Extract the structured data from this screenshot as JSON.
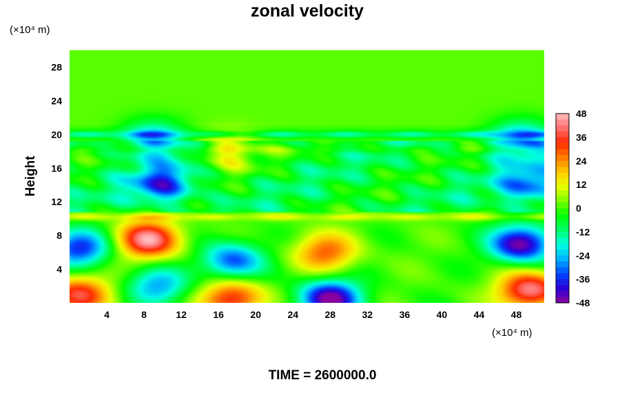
{
  "chart_data": {
    "type": "heatmap",
    "title": "zonal velocity",
    "xlabel": "",
    "ylabel": "Height",
    "x_unit": "(×10⁴ m)",
    "y_unit": "(×10⁴ m)",
    "x_ticks": [
      "4",
      "8",
      "12",
      "16",
      "20",
      "24",
      "28",
      "32",
      "36",
      "40",
      "44",
      "48"
    ],
    "y_ticks": [
      "4",
      "8",
      "12",
      "16",
      "20",
      "24",
      "28"
    ],
    "xlim": [
      0,
      51
    ],
    "ylim": [
      0,
      30
    ],
    "colorbar": {
      "range": [
        -48,
        48
      ],
      "ticks": [
        "48",
        "36",
        "24",
        "12",
        "0",
        "-12",
        "-24",
        "-36",
        "-48"
      ],
      "colors": [
        "#8a009c",
        "#2b00d8",
        "#0045ff",
        "#00b3ff",
        "#00ffe0",
        "#00ff6a",
        "#00ff00",
        "#7dff00",
        "#eaff00",
        "#ffc800",
        "#ff7a00",
        "#ff2a00",
        "#ff6e6e",
        "#ffbcbc"
      ]
    },
    "features": [
      {
        "x": 8.5,
        "y": 7.5,
        "value": 45
      },
      {
        "x": 17.5,
        "y": 5.0,
        "value": -33
      },
      {
        "x": 27.5,
        "y": 6.0,
        "value": 28
      },
      {
        "x": 28.0,
        "y": 0.5,
        "value": -48
      },
      {
        "x": 48.5,
        "y": 7.0,
        "value": -48
      },
      {
        "x": 49.5,
        "y": 1.5,
        "value": 44
      },
      {
        "x": 1.0,
        "y": 1.0,
        "value": 36
      },
      {
        "x": 17.5,
        "y": 0.5,
        "value": 36
      },
      {
        "x": 1.0,
        "y": 6.5,
        "value": -36
      },
      {
        "x": 9.5,
        "y": 2.0,
        "value": -26
      },
      {
        "x": 17.0,
        "y": 18.0,
        "value": 20
      },
      {
        "x": 9.0,
        "y": 19.5,
        "value": -24
      },
      {
        "x": 48.5,
        "y": 19.5,
        "value": -26
      },
      {
        "x": 10.0,
        "y": 14.0,
        "value": -30
      },
      {
        "x": 49.5,
        "y": 14.0,
        "value": -26
      }
    ],
    "bands": [
      {
        "y": 20.0,
        "value": -16
      },
      {
        "y": 10.2,
        "value": 12
      },
      {
        "y": 18.2,
        "value": 5
      }
    ],
    "time_label": "TIME = 2600000.0"
  }
}
